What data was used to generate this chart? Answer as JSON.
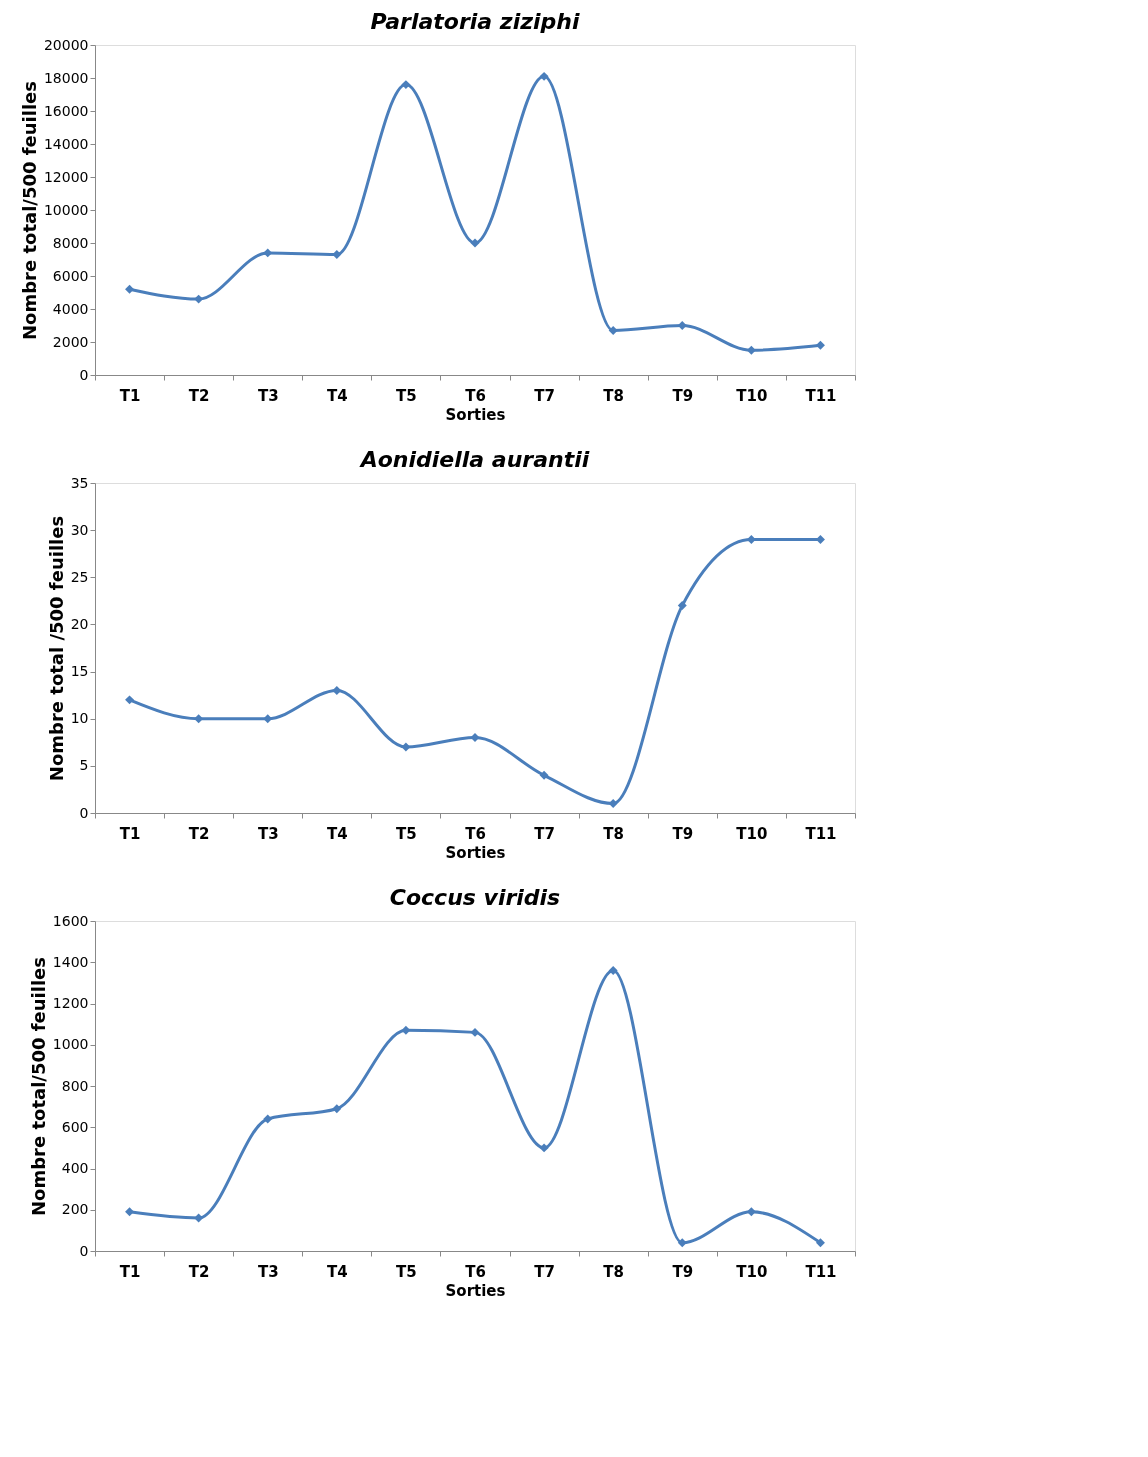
{
  "chart_data": [
    {
      "type": "line",
      "title": "Parlatoria ziziphi",
      "xlabel": "Sorties",
      "ylabel": "Nombre total/500 feuilles",
      "categories": [
        "T1",
        "T2",
        "T3",
        "T4",
        "T5",
        "T6",
        "T7",
        "T8",
        "T9",
        "T10",
        "T11"
      ],
      "series": [
        {
          "color": "#4a7ebb",
          "values": [
            5200,
            4600,
            7400,
            7300,
            17600,
            8000,
            18100,
            2700,
            3000,
            1500,
            1800
          ]
        }
      ],
      "ylim": [
        0,
        20000
      ],
      "yticks": [
        0,
        2000,
        4000,
        6000,
        8000,
        10000,
        12000,
        14000,
        16000,
        18000,
        20000
      ],
      "grid": false,
      "marker": "diamond",
      "line_style": "solid"
    },
    {
      "type": "line",
      "title": "Aonidiella aurantii",
      "xlabel": "Sorties",
      "ylabel": "Nombre total /500 feuilles",
      "categories": [
        "T1",
        "T2",
        "T3",
        "T4",
        "T5",
        "T6",
        "T7",
        "T8",
        "T9",
        "T10",
        "T11"
      ],
      "series": [
        {
          "color": "#4a7ebb",
          "values": [
            12,
            10,
            10,
            13,
            7,
            8,
            4,
            1,
            22,
            29,
            29
          ]
        }
      ],
      "ylim": [
        0,
        35
      ],
      "yticks": [
        0,
        5,
        10,
        15,
        20,
        25,
        30,
        35
      ],
      "grid": false,
      "marker": "diamond",
      "line_style": "solid"
    },
    {
      "type": "line",
      "title": "Coccus viridis",
      "xlabel": "Sorties",
      "ylabel": "Nombre total/500 feuilles",
      "categories": [
        "T1",
        "T2",
        "T3",
        "T4",
        "T5",
        "T6",
        "T7",
        "T8",
        "T9",
        "T10",
        "T11"
      ],
      "series": [
        {
          "color": "#4a7ebb",
          "values": [
            190,
            160,
            640,
            690,
            1070,
            1060,
            500,
            1360,
            40,
            190,
            40
          ]
        }
      ],
      "ylim": [
        0,
        1600
      ],
      "yticks": [
        0,
        200,
        400,
        600,
        800,
        1000,
        1200,
        1400,
        1600
      ],
      "grid": false,
      "marker": "diamond",
      "line_style": "solid"
    }
  ]
}
